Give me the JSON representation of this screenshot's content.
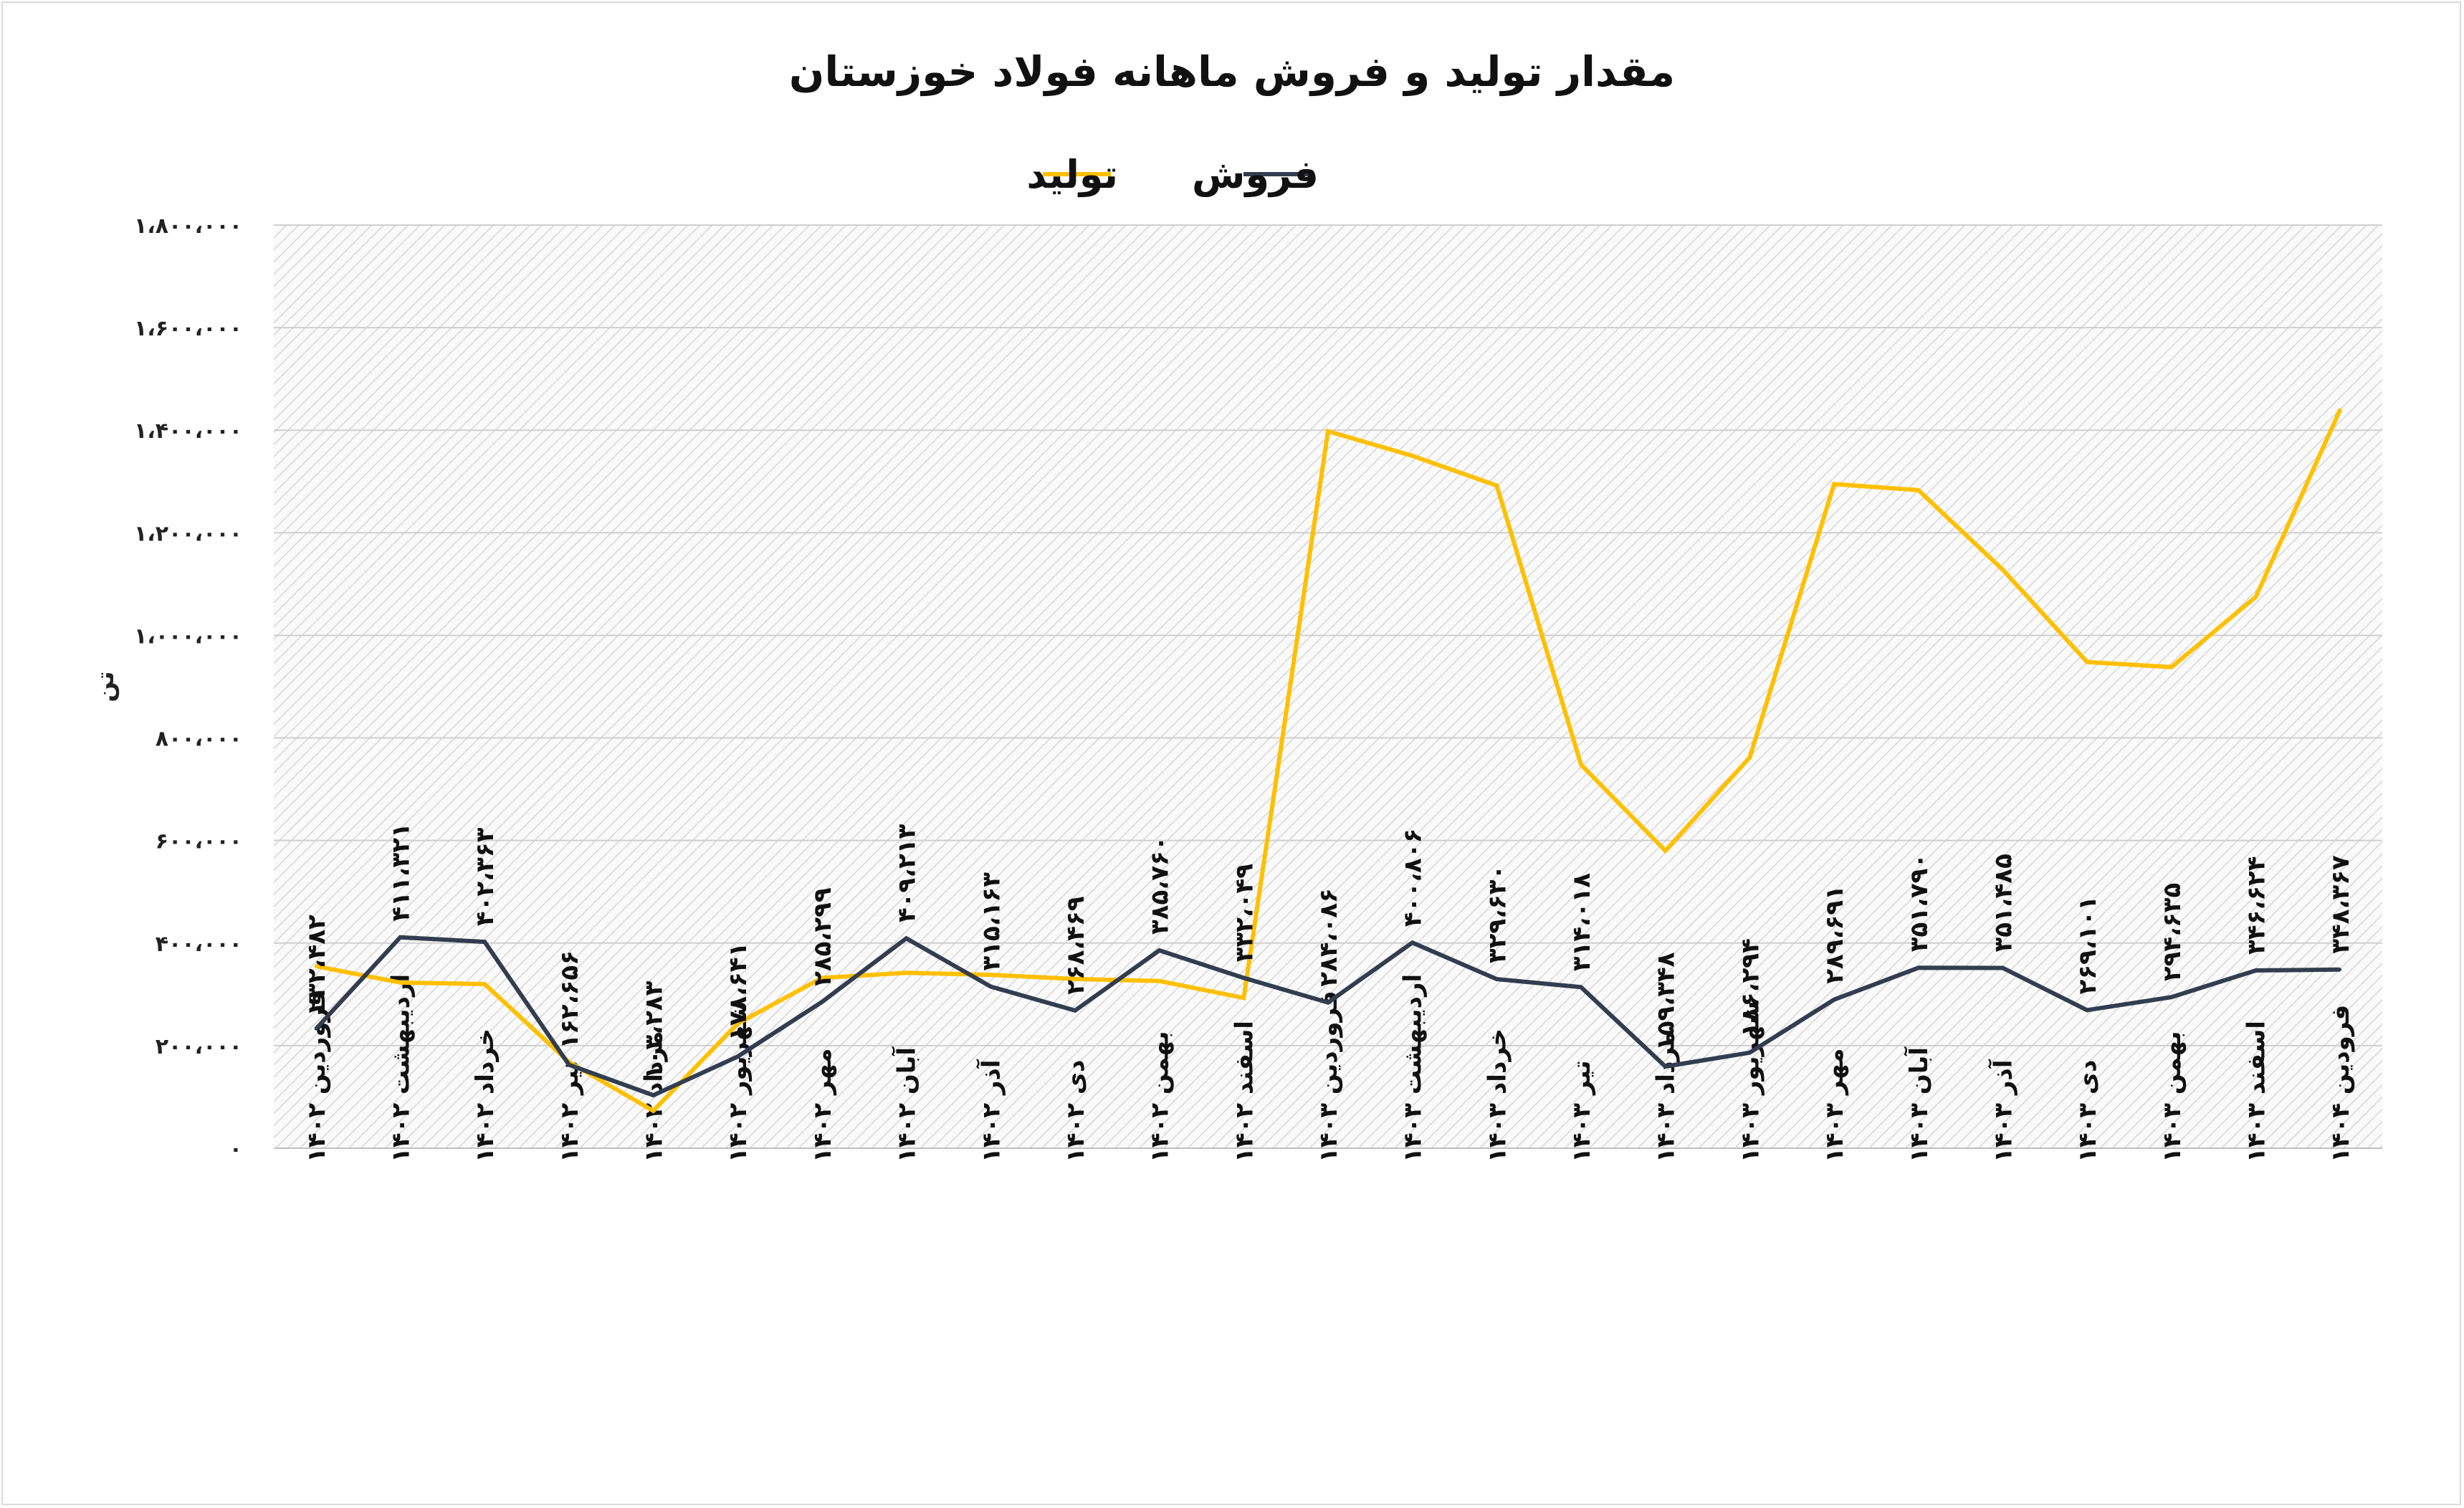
{
  "chart_data": {
    "type": "line",
    "title": "مقدار تولید و فروش ماهانه فولاد خوزستان",
    "xlabel": "",
    "ylabel": "تن",
    "ylim": [
      0,
      1800000
    ],
    "yticks": [
      {
        "value": 0,
        "label": "۰"
      },
      {
        "value": 200000,
        "label": "۲۰۰،۰۰۰"
      },
      {
        "value": 400000,
        "label": "۴۰۰،۰۰۰"
      },
      {
        "value": 600000,
        "label": "۶۰۰،۰۰۰"
      },
      {
        "value": 800000,
        "label": "۸۰۰،۰۰۰"
      },
      {
        "value": 1000000,
        "label": "۱،۰۰۰،۰۰۰"
      },
      {
        "value": 1200000,
        "label": "۱،۲۰۰،۰۰۰"
      },
      {
        "value": 1400000,
        "label": "۱،۴۰۰،۰۰۰"
      },
      {
        "value": 1600000,
        "label": "۱،۶۰۰،۰۰۰"
      },
      {
        "value": 1800000,
        "label": "۱،۸۰۰،۰۰۰"
      }
    ],
    "grid": true,
    "legend_position": "top-center",
    "categories": [
      "فروردین ۱۴۰۲",
      "اردیبهشت ۱۴۰۲",
      "خرداد ۱۴۰۲",
      "تیر ۱۴۰۲",
      "مرداد ۱۴۰۲",
      "شهریور ۱۴۰۲",
      "مهر ۱۴۰۲",
      "آبان ۱۴۰۲",
      "آذر ۱۴۰۲",
      "دی ۱۴۰۲",
      "بهمن ۱۴۰۲",
      "اسفند ۱۴۰۲",
      "فروردین ۱۴۰۳",
      "اردیبهشت ۱۴۰۳",
      "خرداد ۱۴۰۳",
      "تیر ۱۴۰۳",
      "مرداد ۱۴۰۳",
      "شهریور ۱۴۰۳",
      "مهر ۱۴۰۳",
      "آبان ۱۴۰۳",
      "آذر ۱۴۰۳",
      "دی ۱۴۰۳",
      "بهمن ۱۴۰۳",
      "اسفند ۱۴۰۳",
      "فرودین ۱۴۰۴"
    ],
    "series": [
      {
        "name": "تولید",
        "color": "#FFC000",
        "values": [
          355000,
          323000,
          320000,
          168000,
          73000,
          243000,
          332000,
          342000,
          338000,
          330000,
          326000,
          293000,
          1398000,
          1350000,
          1292000,
          748000,
          580000,
          762000,
          1295000,
          1283000,
          1128000,
          948000,
          938000,
          1075000,
          1440000
        ]
      },
      {
        "name": "فروش",
        "color": "#323E4F",
        "values": [
          232482,
          411321,
          402363,
          162656,
          103283,
          178641,
          285299,
          409213,
          315163,
          268469,
          385760,
          332049,
          284086,
          400806,
          329630,
          314018,
          159348,
          186294,
          289691,
          351790,
          351485,
          269101,
          294635,
          346624,
          348367
        ],
        "data_labels": [
          "۲۳۲،۴۸۲",
          "۴۱۱،۳۲۱",
          "۴۰۲،۳۶۳",
          "۱۶۲،۶۵۶",
          "۱۰۳،۲۸۳",
          "۱۷۸،۶۴۱",
          "۲۸۵،۲۹۹",
          "۴۰۹،۲۱۳",
          "۳۱۵،۱۶۳",
          "۲۶۸،۴۶۹",
          "۳۸۵،۷۶۰",
          "۳۳۲،۰۴۹",
          "۲۸۴،۰۸۶",
          "۴۰۰،۸۰۶",
          "۳۲۹،۶۳۰",
          "۳۱۴،۰۱۸",
          "۱۵۹،۳۴۸",
          "۱۸۶،۲۹۴",
          "۲۸۹،۶۹۱",
          "۳۵۱،۷۹۰",
          "۳۵۱،۴۸۵",
          "۲۶۹،۱۰۱",
          "۲۹۴،۶۳۵",
          "۳۴۶،۶۲۴",
          "۳۴۸،۳۶۷"
        ]
      }
    ]
  }
}
